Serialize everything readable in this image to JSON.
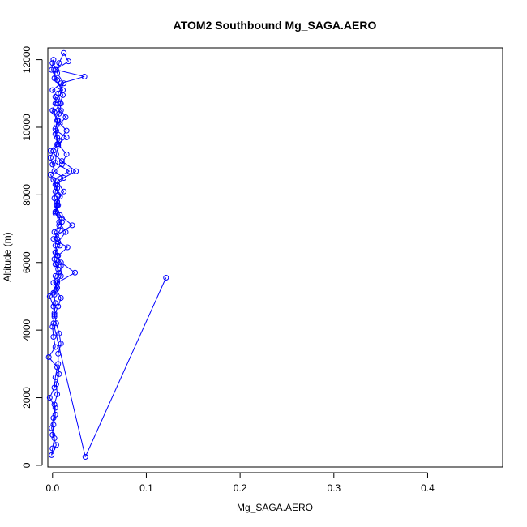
{
  "chart_data": {
    "type": "line",
    "title": "ATOM2 Southbound Mg_SAGA.AERO",
    "xlabel": "Mg_SAGA.AERO",
    "ylabel": "Altitude (m)",
    "xlim": [
      -0.005,
      0.48
    ],
    "ylim": [
      -50,
      12350
    ],
    "xticks": [
      0.0,
      0.1,
      0.2,
      0.3,
      0.4
    ],
    "xtick_labels": [
      "0.0",
      "0.1",
      "0.2",
      "0.3",
      "0.4"
    ],
    "yticks": [
      0,
      2000,
      4000,
      6000,
      8000,
      10000,
      12000
    ],
    "ytick_labels": [
      "0",
      "2000",
      "4000",
      "6000",
      "8000",
      "10000",
      "12000"
    ],
    "grid": false,
    "series_color": "#0000ff",
    "series": [
      {
        "x": [
          0.002,
          0.005,
          0.001,
          0.003,
          0.006,
          0.004,
          0.002,
          0.003,
          0.008,
          0.005,
          0.002,
          0.007,
          0.01,
          0.004,
          0.006,
          0.002,
          0.003,
          0.005,
          0.012,
          0.002,
          0.0,
          -0.002,
          0.001,
          0.005,
          0.015,
          0.004,
          0.008,
          0.014,
          0.009,
          0.003,
          0.003,
          0.0,
          0.009,
          0.034,
          0.004,
          0.0,
          0.001,
          -0.001,
          0.005,
          0.011,
          0.004,
          0.0,
          0.005,
          0.015,
          0.007,
          -0.002,
          0.01,
          0.025,
          0.005,
          0.012,
          0.005,
          0.003,
          0.007,
          0.014,
          0.006,
          0.003,
          0.009,
          0.024,
          0.005,
          0.001,
          0.003,
          0.002,
          0.004,
          0.007,
          0.009,
          0.006,
          0.006,
          0.007,
          0.004,
          0.005,
          0.002,
          0.003,
          0.001,
          0.0,
          0.004,
          -0.001,
          0.0,
          0.002,
          -0.001,
          0.001,
          0.003,
          -0.003,
          0.002,
          0.003,
          0.005,
          -0.004,
          0.003,
          0.001,
          0.0,
          0.002,
          0.001,
          -0.003,
          0.004,
          0.009,
          0.009,
          0.005,
          0.003,
          0.004,
          0.021,
          0.008,
          0.004,
          0.006,
          0.003,
          -0.002,
          0.01,
          0.015,
          0.006,
          0.003,
          0.004,
          0.007,
          0.009,
          0.006,
          0.012,
          0.005,
          0.007,
          0.012,
          0.017,
          0.003,
          0.002,
          0.008,
          0.011,
          0.008,
          0.002,
          0.006,
          0.003,
          0.005,
          0.006,
          0.004,
          0.003,
          0.018,
          0.001,
          0.005,
          0.008,
          0.005,
          0.003,
          0.01,
          0.008,
          0.001,
          0.016,
          0.006,
          0.003,
          0.007,
          0.005,
          0.004,
          0.009,
          0.006,
          0.002,
          0.001,
          0.035,
          0.121
        ],
        "y": [
          5050,
          5250,
          5400,
          5600,
          5800,
          5950,
          6100,
          6300,
          6500,
          6700,
          6900,
          7100,
          7300,
          7500,
          7700,
          7900,
          8100,
          8300,
          8500,
          8700,
          8900,
          9100,
          9300,
          9500,
          9700,
          9900,
          10100,
          10300,
          10500,
          10700,
          10900,
          11100,
          11300,
          11500,
          11700,
          11900,
          12000,
          11700,
          11400,
          11100,
          10800,
          10500,
          10200,
          9900,
          9600,
          9300,
          9000,
          8700,
          8400,
          8100,
          7800,
          7500,
          7200,
          6900,
          6600,
          6300,
          6000,
          5700,
          5400,
          5100,
          4800,
          4500,
          4200,
          3900,
          3600,
          3300,
          3000,
          2700,
          2400,
          2100,
          1800,
          1500,
          1200,
          900,
          600,
          300,
          500,
          800,
          1100,
          1400,
          1700,
          2000,
          2300,
          2600,
          2900,
          3200,
          3500,
          3800,
          4100,
          4400,
          4700,
          5000,
          5300,
          5600,
          5900,
          6200,
          6500,
          6800,
          7100,
          7400,
          7700,
          8000,
          8300,
          8600,
          8900,
          9200,
          9500,
          9800,
          10100,
          10400,
          10700,
          11000,
          11300,
          11600,
          11900,
          12200,
          11950,
          11700,
          11450,
          11200,
          10950,
          10700,
          10450,
          10200,
          9950,
          9700,
          9450,
          9200,
          8950,
          8700,
          8450,
          8200,
          7950,
          7700,
          7450,
          7200,
          6950,
          6700,
          6450,
          6200,
          5950,
          5700,
          5450,
          5200,
          4950,
          4700,
          4450,
          4200,
          250,
          5550
        ]
      }
    ]
  }
}
